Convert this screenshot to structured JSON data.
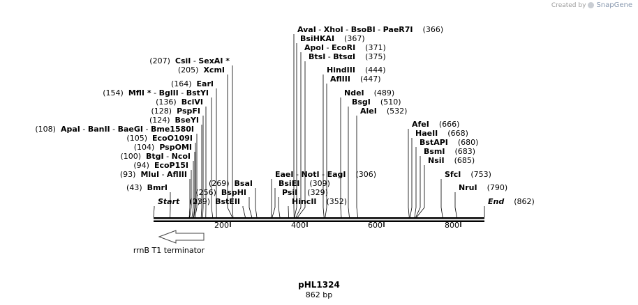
{
  "credit": {
    "prefix": "Created by",
    "brand": "SnapGene"
  },
  "plasmid": {
    "name": "pHL1324",
    "length_label": "862 bp"
  },
  "axis": {
    "ticks": [
      200,
      400,
      600,
      800
    ]
  },
  "feature": {
    "label": "rrnB T1 terminator"
  },
  "labels": [
    {
      "id": "start",
      "pos": "(0)",
      "names": [
        {
          "t": "Start",
          "s": "it"
        }
      ]
    },
    {
      "id": "end",
      "pos": "(862)",
      "names": [
        {
          "t": "End",
          "s": "it"
        }
      ]
    },
    {
      "id": "bmri",
      "pos": "(43)",
      "names": [
        {
          "t": "BmrI",
          "s": "b"
        }
      ]
    },
    {
      "id": "mlui",
      "pos": "(93)",
      "names": [
        {
          "t": "MluI",
          "s": "b"
        },
        {
          "t": " - ",
          "s": ""
        },
        {
          "t": "AflIII",
          "s": "b"
        }
      ]
    },
    {
      "id": "ecop15i",
      "pos": "(94)",
      "names": [
        {
          "t": "EcoP15I",
          "s": "b"
        }
      ]
    },
    {
      "id": "btgi",
      "pos": "(100)",
      "names": [
        {
          "t": "BtgI",
          "s": "b"
        },
        {
          "t": " - ",
          "s": ""
        },
        {
          "t": "NcoI",
          "s": "b"
        }
      ]
    },
    {
      "id": "pspomi",
      "pos": "(104)",
      "names": [
        {
          "t": "PspOMI",
          "s": "b"
        }
      ]
    },
    {
      "id": "ecoo109i",
      "pos": "(105)",
      "names": [
        {
          "t": "EcoO109I",
          "s": "b"
        }
      ]
    },
    {
      "id": "apai",
      "pos": "(108)",
      "names": [
        {
          "t": "ApaI",
          "s": "b"
        },
        {
          "t": "  - ",
          "s": ""
        },
        {
          "t": "BanII",
          "s": "b"
        },
        {
          "t": "  - ",
          "s": ""
        },
        {
          "t": "BaeGI",
          "s": "b"
        },
        {
          "t": " - ",
          "s": ""
        },
        {
          "t": "Bme1580I",
          "s": "b"
        }
      ]
    },
    {
      "id": "bseyi",
      "pos": "(124)",
      "names": [
        {
          "t": "BseYI",
          "s": "b"
        }
      ]
    },
    {
      "id": "pspfi",
      "pos": "(128)",
      "names": [
        {
          "t": "PspFI",
          "s": "b"
        }
      ]
    },
    {
      "id": "bcivi",
      "pos": "(136)",
      "names": [
        {
          "t": "BciVI",
          "s": "b"
        }
      ]
    },
    {
      "id": "mfli",
      "pos": "(154)",
      "names": [
        {
          "t": "MflI *",
          "s": "b"
        },
        {
          "t": " - ",
          "s": ""
        },
        {
          "t": "BglII",
          "s": "b"
        },
        {
          "t": " - ",
          "s": ""
        },
        {
          "t": "BstYI",
          "s": "b"
        }
      ]
    },
    {
      "id": "eari",
      "pos": "(164)",
      "names": [
        {
          "t": "EarI",
          "s": "b"
        }
      ]
    },
    {
      "id": "xcmi",
      "pos": "(205)",
      "names": [
        {
          "t": "XcmI",
          "s": "b"
        }
      ]
    },
    {
      "id": "csii",
      "pos": "(207)",
      "names": [
        {
          "t": "CsiI",
          "s": "b"
        },
        {
          "t": "  - ",
          "s": ""
        },
        {
          "t": "SexAI *",
          "s": "b"
        }
      ]
    },
    {
      "id": "bsteii",
      "pos": "(239)",
      "names": [
        {
          "t": "BstEII",
          "s": "b"
        }
      ]
    },
    {
      "id": "bsphi",
      "pos": "(256)",
      "names": [
        {
          "t": "BspHI",
          "s": "b"
        }
      ]
    },
    {
      "id": "bsai",
      "pos": "(269)",
      "names": [
        {
          "t": "BsaI",
          "s": "b"
        }
      ]
    },
    {
      "id": "eaei",
      "pos": "(306)",
      "names": [
        {
          "t": "EaeI",
          "s": "b"
        },
        {
          "t": "  - ",
          "s": ""
        },
        {
          "t": "NotI",
          "s": "b"
        },
        {
          "t": "  - ",
          "s": ""
        },
        {
          "t": "EagI",
          "s": "b"
        }
      ]
    },
    {
      "id": "bsiei",
      "pos": "(309)",
      "names": [
        {
          "t": "BsiEI",
          "s": "b"
        }
      ]
    },
    {
      "id": "psii",
      "pos": "(329)",
      "names": [
        {
          "t": "PsiI",
          "s": "b"
        }
      ]
    },
    {
      "id": "hincii",
      "pos": "(352)",
      "names": [
        {
          "t": "HincII",
          "s": "b"
        }
      ]
    },
    {
      "id": "avai",
      "pos": "(366)",
      "names": [
        {
          "t": "AvaI",
          "s": "b"
        },
        {
          "t": "  - ",
          "s": ""
        },
        {
          "t": "XhoI",
          "s": "b"
        },
        {
          "t": "  - ",
          "s": ""
        },
        {
          "t": "BsoBI",
          "s": "b"
        },
        {
          "t": "  - ",
          "s": ""
        },
        {
          "t": "PaeR7I",
          "s": "b"
        }
      ]
    },
    {
      "id": "bsihkai",
      "pos": "(367)",
      "names": [
        {
          "t": "BsiHKAI",
          "s": "b"
        }
      ]
    },
    {
      "id": "apoi",
      "pos": "(371)",
      "names": [
        {
          "t": "ApoI",
          "s": "b"
        },
        {
          "t": "  - ",
          "s": ""
        },
        {
          "t": "EcoRI",
          "s": "b"
        }
      ]
    },
    {
      "id": "btsi",
      "pos": "(375)",
      "names": [
        {
          "t": "BtsI",
          "s": "b"
        },
        {
          "t": "  - ",
          "s": ""
        },
        {
          "t": "BtsαI",
          "s": "b"
        }
      ]
    },
    {
      "id": "hindiii",
      "pos": "(444)",
      "names": [
        {
          "t": "HindIII",
          "s": "b"
        }
      ]
    },
    {
      "id": "afliii2",
      "pos": "(447)",
      "names": [
        {
          "t": "AflIII",
          "s": "b"
        }
      ]
    },
    {
      "id": "ndei",
      "pos": "(489)",
      "names": [
        {
          "t": "NdeI",
          "s": "b"
        }
      ]
    },
    {
      "id": "bsgi",
      "pos": "(510)",
      "names": [
        {
          "t": "BsgI",
          "s": "b"
        }
      ]
    },
    {
      "id": "alei",
      "pos": "(532)",
      "names": [
        {
          "t": "AleI",
          "s": "b"
        }
      ]
    },
    {
      "id": "afei",
      "pos": "(666)",
      "names": [
        {
          "t": "AfeI",
          "s": "b"
        }
      ]
    },
    {
      "id": "haeii",
      "pos": "(668)",
      "names": [
        {
          "t": "HaeII",
          "s": "b"
        }
      ]
    },
    {
      "id": "bstapi",
      "pos": "(680)",
      "names": [
        {
          "t": "BstAPI",
          "s": "b"
        }
      ]
    },
    {
      "id": "bsmi",
      "pos": "(683)",
      "names": [
        {
          "t": "BsmI",
          "s": "b"
        }
      ]
    },
    {
      "id": "nsii",
      "pos": "(685)",
      "names": [
        {
          "t": "NsiI",
          "s": "b"
        }
      ]
    },
    {
      "id": "sfci",
      "pos": "(753)",
      "names": [
        {
          "t": "SfcI",
          "s": "b"
        }
      ]
    },
    {
      "id": "nrui",
      "pos": "(790)",
      "names": [
        {
          "t": "NruI",
          "s": "b"
        }
      ]
    }
  ]
}
